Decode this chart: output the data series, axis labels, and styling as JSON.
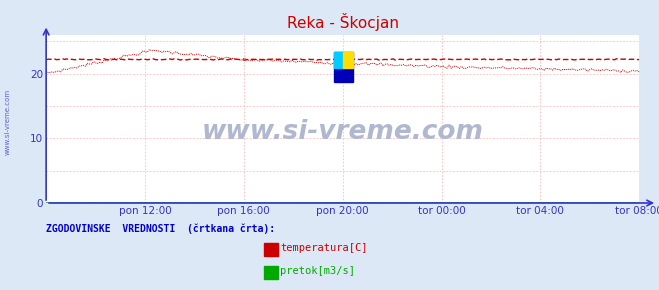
{
  "title": "Reka - Škocjan",
  "bg_color": "#dce8f5",
  "plot_bg_color": "#ffffff",
  "grid_color": "#ffbbbb",
  "axis_color": "#3333cc",
  "tick_color": "#3333cc",
  "title_color": "#cc0000",
  "watermark_text": "www.si-vreme.com",
  "watermark_color": "#b0b8d0",
  "legend_label": "ZGODOVINSKE  VREDNOSTI  (črtkana črta):",
  "legend_color": "#0000cc",
  "legend_items": [
    {
      "label": "temperatura[C]",
      "color": "#cc0000"
    },
    {
      "label": "pretok[m3/s]",
      "color": "#00aa00"
    }
  ],
  "x_tick_labels": [
    "pon 12:00",
    "pon 16:00",
    "pon 20:00",
    "tor 00:00",
    "tor 04:00",
    "tor 08:00"
  ],
  "x_tick_positions": [
    0.167,
    0.333,
    0.5,
    0.667,
    0.833,
    1.0
  ],
  "ylim": [
    0,
    26
  ],
  "y_ticks": [
    0,
    10,
    20
  ],
  "temp_color": "#cc0000",
  "pretok_color": "#00aa00",
  "left_label": "www.si-vreme.com",
  "left_label_color": "#3333cc",
  "logo_colors": [
    "#0000cc",
    "#00cccc",
    "#ffdd00"
  ]
}
